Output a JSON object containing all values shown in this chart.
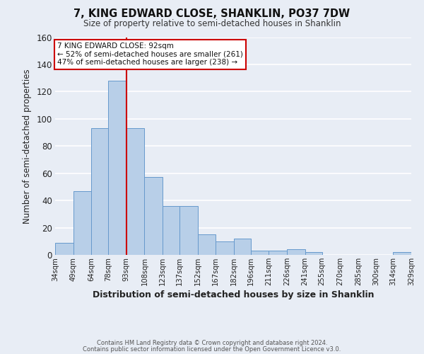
{
  "title": "7, KING EDWARD CLOSE, SHANKLIN, PO37 7DW",
  "subtitle": "Size of property relative to semi-detached houses in Shanklin",
  "xlabel": "Distribution of semi-detached houses by size in Shanklin",
  "ylabel": "Number of semi-detached properties",
  "bar_color": "#b8cfe8",
  "bar_edge_color": "#6699cc",
  "bg_color": "#e8edf5",
  "grid_color": "#ffffff",
  "vline_value": 93,
  "vline_color": "#cc0000",
  "annotation_title": "7 KING EDWARD CLOSE: 92sqm",
  "annotation_line1": "← 52% of semi-detached houses are smaller (261)",
  "annotation_line2": "47% of semi-detached houses are larger (238) →",
  "bin_labels": [
    "34sqm",
    "49sqm",
    "64sqm",
    "78sqm",
    "93sqm",
    "108sqm",
    "123sqm",
    "137sqm",
    "152sqm",
    "167sqm",
    "182sqm",
    "196sqm",
    "211sqm",
    "226sqm",
    "241sqm",
    "255sqm",
    "270sqm",
    "285sqm",
    "300sqm",
    "314sqm",
    "329sqm"
  ],
  "bin_edges": [
    34,
    49,
    64,
    78,
    93,
    108,
    123,
    137,
    152,
    167,
    182,
    196,
    211,
    226,
    241,
    255,
    270,
    285,
    300,
    314,
    329
  ],
  "bar_heights": [
    9,
    47,
    93,
    128,
    93,
    57,
    36,
    36,
    15,
    10,
    12,
    3,
    3,
    4,
    2,
    0,
    0,
    0,
    0,
    2
  ],
  "ylim": [
    0,
    160
  ],
  "yticks": [
    0,
    20,
    40,
    60,
    80,
    100,
    120,
    140,
    160
  ],
  "footer_line1": "Contains HM Land Registry data © Crown copyright and database right 2024.",
  "footer_line2": "Contains public sector information licensed under the Open Government Licence v3.0."
}
